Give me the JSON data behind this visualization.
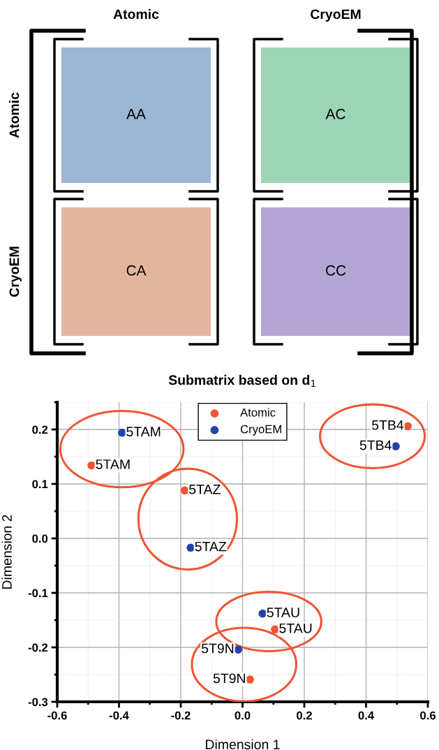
{
  "chart_data": [
    {
      "type": "other",
      "categories": [
        "Atomic",
        "CryoEM"
      ],
      "y_categories": [
        "Atomic",
        "CryoEM"
      ],
      "cell_labels": [
        [
          "AA",
          "AC"
        ],
        [
          "CA",
          "CC"
        ]
      ],
      "colors": [
        [
          "#9db6d4",
          "#9dd6b6"
        ],
        [
          "#e2b69e",
          "#b4a6d4"
        ]
      ]
    },
    {
      "type": "scatter",
      "title": "Submatrix based on d$_{1}$",
      "xlabel": "Dimension 1",
      "ylabel": "Dimension 2",
      "series": [
        {
          "name": "Atomic",
          "color": "#ee5533",
          "x": [
            -0.489,
            -0.187,
            0.535,
            0.105,
            0.024
          ],
          "values": [
            0.134,
            0.088,
            0.206,
            -0.167,
            -0.259
          ]
        },
        {
          "name": "CryoEM",
          "color": "#2244aa",
          "x": [
            -0.39,
            -0.168,
            0.496,
            0.065,
            -0.014
          ],
          "values": [
            0.194,
            -0.017,
            0.169,
            -0.138,
            -0.204
          ]
        }
      ],
      "annotations": [
        {
          "text": "5TAM",
          "x": -0.489,
          "y": 0.134
        },
        {
          "text": "5TAZ",
          "x": -0.187,
          "y": 0.088
        },
        {
          "text": "5TB4",
          "x": 0.535,
          "y": 0.206
        },
        {
          "text": "5TAU",
          "x": 0.105,
          "y": -0.167
        },
        {
          "text": "5T9N",
          "x": 0.024,
          "y": -0.259
        },
        {
          "text": "5TAM",
          "x": -0.39,
          "y": 0.194
        },
        {
          "text": "5TAZ",
          "x": -0.168,
          "y": -0.017
        },
        {
          "text": "5TB4",
          "x": 0.496,
          "y": 0.169
        },
        {
          "text": "5TAU",
          "x": 0.065,
          "y": -0.138
        },
        {
          "text": "5T9N",
          "x": -0.014,
          "y": -0.204
        }
      ],
      "xlim": [
        -0.6,
        0.6
      ],
      "xticks": [
        -0.6,
        -0.4,
        -0.2,
        {
          "value": 0,
          "label": "0.0"
        },
        0.2,
        0.4,
        0.6
      ],
      "ylim": [
        -0.3,
        0.25
      ],
      "yticks": [
        -0.3,
        -0.2,
        -0.1,
        {
          "value": 0,
          "label": "0.0"
        },
        0.1,
        0.2
      ],
      "grid": true,
      "legend": "top",
      "marker": "circle"
    }
  ]
}
